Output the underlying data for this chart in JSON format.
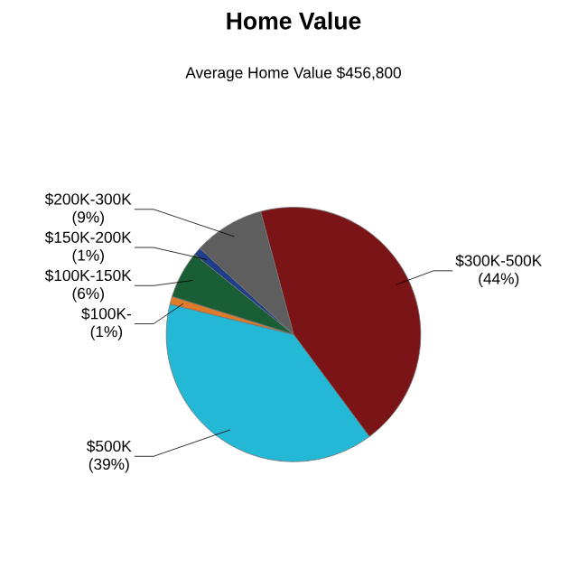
{
  "chart_data": {
    "type": "pie",
    "title": "Home Value",
    "subtitle": "Average Home Value  $456,800",
    "categories": [
      "$300K-500K",
      "$500K",
      "$100K-",
      "$100K-150K",
      "$150K-200K",
      "$200K-300K"
    ],
    "values": [
      44,
      39,
      1,
      6,
      1,
      9
    ],
    "value_labels": [
      "(44%)",
      "(39%)",
      "(1%)",
      "(6%)",
      "(1%)",
      "(9%)"
    ],
    "colors": [
      "#7b1416",
      "#22b8d6",
      "#e07b2a",
      "#1a5e35",
      "#1f3e8a",
      "#5e5e5e"
    ]
  }
}
